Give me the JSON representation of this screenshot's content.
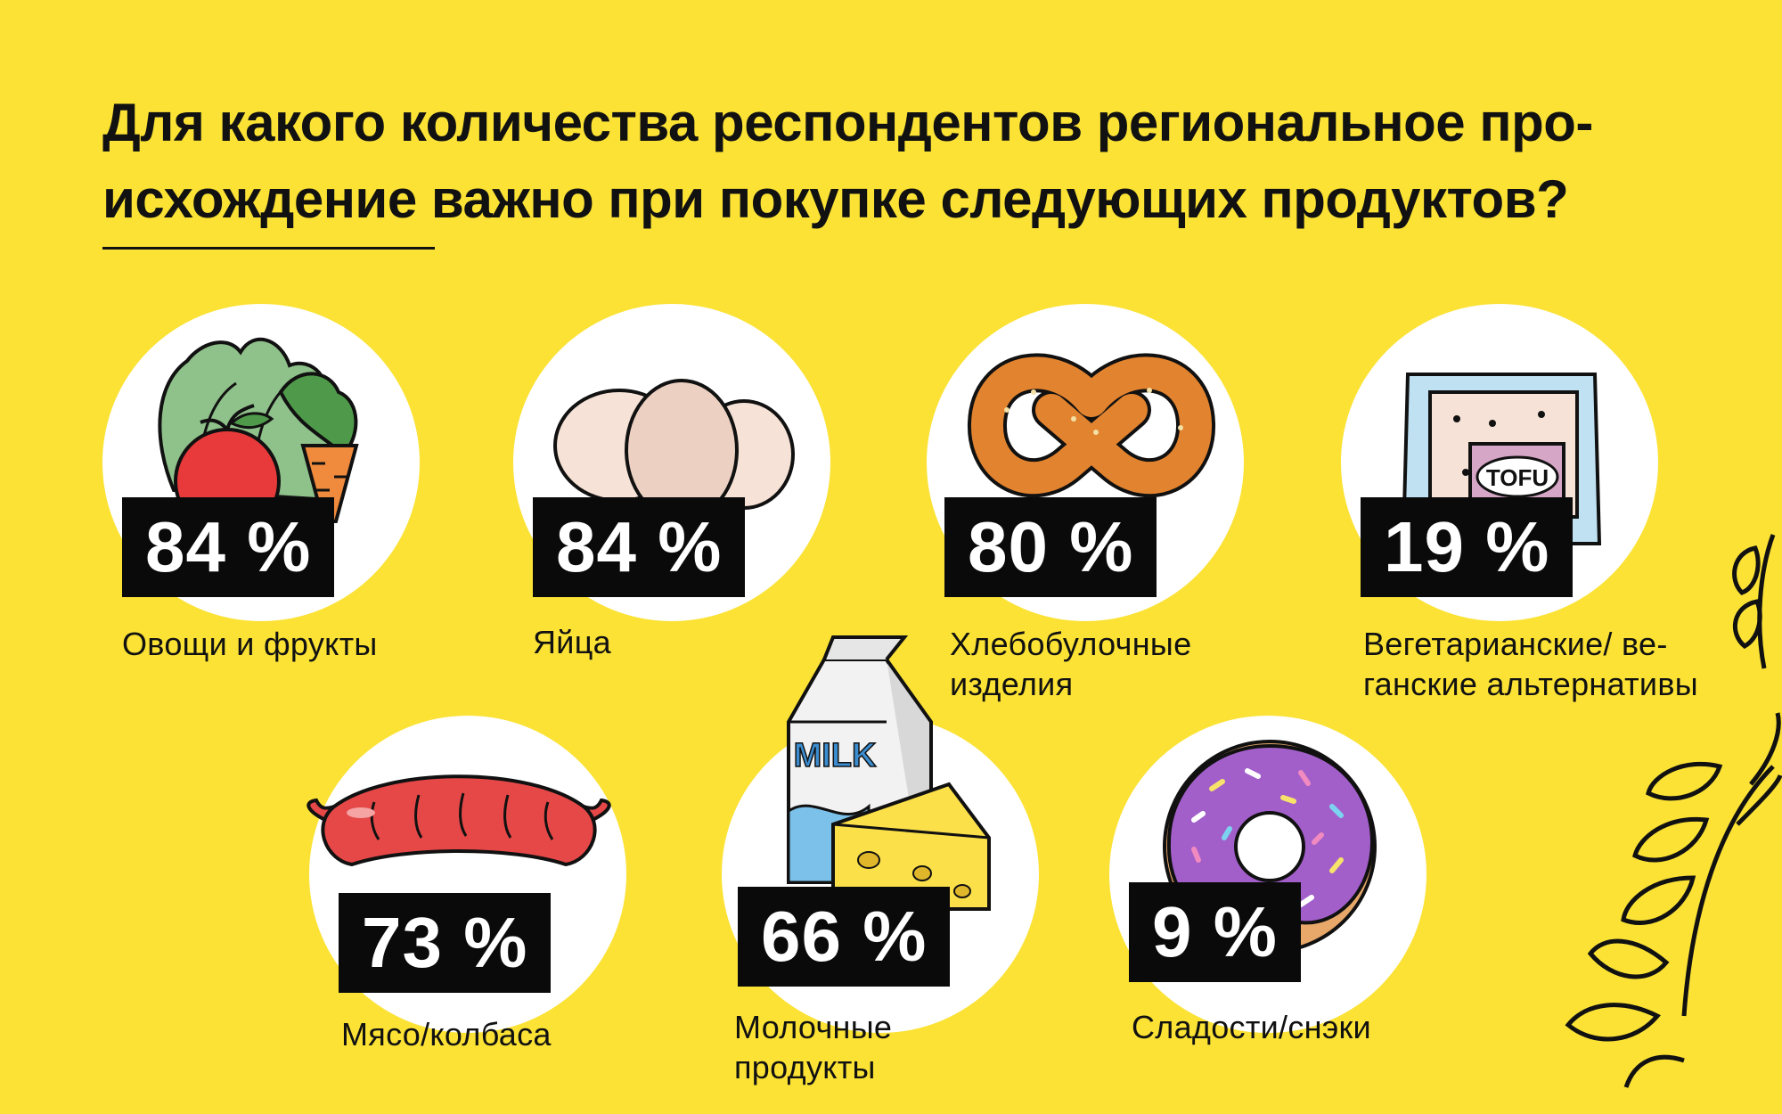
{
  "title_line1": "Для какого количества респондентов региональное про-",
  "title_line2": "исхождение важно при покупке следующих продуктов?",
  "chart_data": {
    "type": "bar",
    "title": "Для какого количества респондентов региональное происхождение важно при покупке следующих продуктов?",
    "unit": "%",
    "items": [
      {
        "category": "Овощи и фрукты",
        "value": 84,
        "value_label": "84 %",
        "label_lines": [
          "Овощи и фрукты"
        ]
      },
      {
        "category": "Яйца",
        "value": 84,
        "value_label": "84 %",
        "label_lines": [
          "Яйца"
        ]
      },
      {
        "category": "Хлебобулочные изделия",
        "value": 80,
        "value_label": "80 %",
        "label_lines": [
          "Хлебобулочные",
          "изделия"
        ]
      },
      {
        "category": "Вегетарианские/ веганские альтернативы",
        "value": 19,
        "value_label": "19 %",
        "label_lines": [
          "Вегетарианские/ ве-",
          "ганские альтернативы"
        ]
      },
      {
        "category": "Мясо/колбаса",
        "value": 73,
        "value_label": "73 %",
        "label_lines": [
          "Мясо/колбаса"
        ]
      },
      {
        "category": "Молочные продукты",
        "value": 66,
        "value_label": "66 %",
        "label_lines": [
          "Молочные",
          "продукты"
        ]
      },
      {
        "category": "Сладости/снэки",
        "value": 9,
        "value_label": "9 %",
        "label_lines": [
          "Сладости/снэки"
        ]
      }
    ]
  },
  "illustration_text": {
    "milk": "MILK",
    "tofu": "TOFU"
  },
  "colors": {
    "background": "#fbe235",
    "badge": "#0a0a0a",
    "text": "#111111"
  }
}
